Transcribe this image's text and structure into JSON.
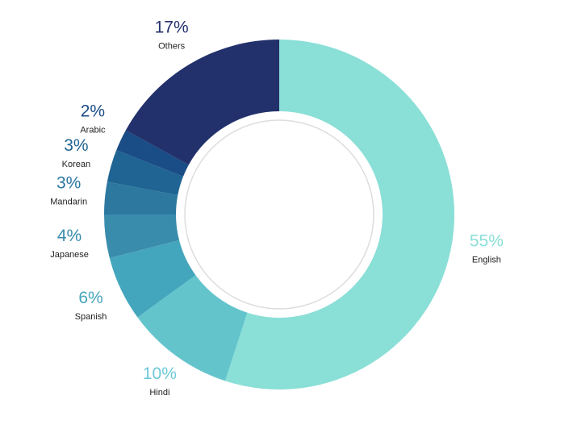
{
  "chart_data": {
    "type": "pie",
    "donut": true,
    "start_angle_deg": 0,
    "direction": "clockwise",
    "slices": [
      {
        "label": "English",
        "value": 55,
        "value_label": "55%",
        "color": "#8ADFD7",
        "label_color": "#8ADFD7"
      },
      {
        "label": "Hindi",
        "value": 10,
        "value_label": "10%",
        "color": "#64C4CC",
        "label_color": "#6CC8D8"
      },
      {
        "label": "Spanish",
        "value": 6,
        "value_label": "6%",
        "color": "#44A6BC",
        "label_color": "#44A6BC"
      },
      {
        "label": "Japanese",
        "value": 4,
        "value_label": "4%",
        "color": "#3A8CAC",
        "label_color": "#3A8CAC"
      },
      {
        "label": "Mandarin",
        "value": 3,
        "value_label": "3%",
        "color": "#2C789F",
        "label_color": "#2C789F"
      },
      {
        "label": "Korean",
        "value": 3,
        "value_label": "3%",
        "color": "#1F6493",
        "label_color": "#1F6493"
      },
      {
        "label": "Arabic",
        "value": 2,
        "value_label": "2%",
        "color": "#1A4C86",
        "label_color": "#1A4C86"
      },
      {
        "label": "Others",
        "value": 17,
        "value_label": "17%",
        "color": "#22316B",
        "label_color": "#22316B"
      }
    ],
    "legend": "none"
  }
}
